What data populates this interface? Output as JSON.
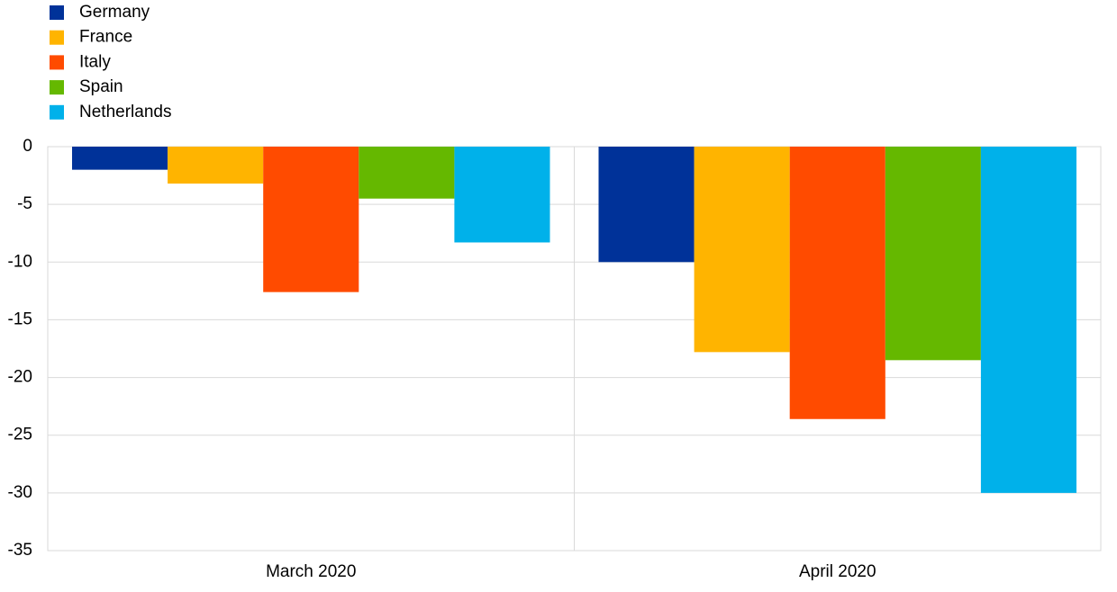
{
  "chart_data": {
    "type": "bar",
    "categories": [
      "March 2020",
      "April 2020"
    ],
    "series": [
      {
        "name": "Germany",
        "color": "#003299",
        "values": [
          -2.0,
          -10.0
        ]
      },
      {
        "name": "France",
        "color": "#ffb400",
        "values": [
          -3.2,
          -17.8
        ]
      },
      {
        "name": "Italy",
        "color": "#ff4b00",
        "values": [
          -12.6,
          -23.6
        ]
      },
      {
        "name": "Spain",
        "color": "#65b800",
        "values": [
          -4.5,
          -18.5
        ]
      },
      {
        "name": "Netherlands",
        "color": "#00b1ea",
        "values": [
          -8.3,
          -30.0
        ]
      }
    ],
    "ylim": [
      -35,
      0
    ],
    "yticks": [
      0,
      -5,
      -10,
      -15,
      -20,
      -25,
      -30,
      -35
    ],
    "grid": true,
    "legend": "upper-left"
  }
}
